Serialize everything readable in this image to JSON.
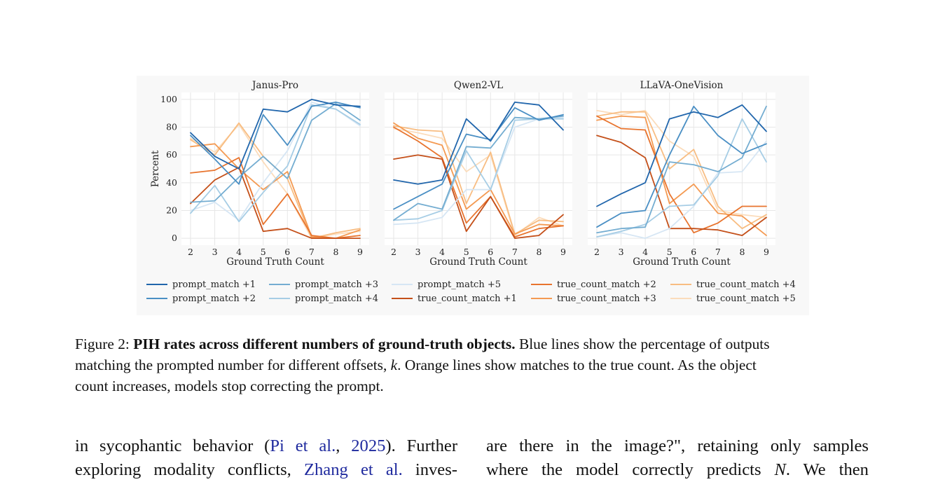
{
  "figure": {
    "ylabel": "Percent",
    "xlabel": "Ground Truth Count",
    "x": [
      2,
      3,
      4,
      5,
      6,
      7,
      8,
      9
    ],
    "yticks": [
      "0",
      "20",
      "40",
      "60",
      "80",
      "100"
    ],
    "legend": [
      {
        "name": "prompt_match +1",
        "color": "#2166ac"
      },
      {
        "name": "prompt_match +2",
        "color": "#4a8fc4"
      },
      {
        "name": "prompt_match +3",
        "color": "#74add1"
      },
      {
        "name": "prompt_match +4",
        "color": "#a6cde5"
      },
      {
        "name": "prompt_match +5",
        "color": "#d6e6f4"
      },
      {
        "name": "true_count_match +1",
        "color": "#c4501a"
      },
      {
        "name": "true_count_match +2",
        "color": "#e8742e"
      },
      {
        "name": "true_count_match +3",
        "color": "#f49a52"
      },
      {
        "name": "true_count_match +4",
        "color": "#f8bd82"
      },
      {
        "name": "true_count_match +5",
        "color": "#fbdcbb"
      }
    ]
  },
  "chart_data": [
    {
      "type": "line",
      "title": "Janus-Pro",
      "xlabel": "Ground Truth Count",
      "ylabel": "Percent",
      "x": [
        2,
        3,
        4,
        5,
        6,
        7,
        8,
        9
      ],
      "ylim": [
        0,
        100
      ],
      "grid": true,
      "series": [
        {
          "name": "prompt_match +1",
          "values": [
            76,
            59,
            50,
            93,
            91,
            100,
            96,
            95
          ]
        },
        {
          "name": "prompt_match +2",
          "values": [
            74,
            57,
            39,
            89,
            67,
            95,
            98,
            94
          ]
        },
        {
          "name": "prompt_match +3",
          "values": [
            26,
            27,
            44,
            59,
            43,
            85,
            97,
            85
          ]
        },
        {
          "name": "prompt_match +4",
          "values": [
            18,
            38,
            12,
            33,
            52,
            96,
            93,
            82
          ]
        },
        {
          "name": "prompt_match +5",
          "values": [
            20,
            26,
            13,
            40,
            63,
            98,
            93,
            81
          ]
        },
        {
          "name": "true_count_match +1",
          "values": [
            25,
            42,
            51,
            5,
            7,
            0,
            0,
            0
          ]
        },
        {
          "name": "true_count_match +2",
          "values": [
            47,
            49,
            58,
            10,
            32,
            2,
            0,
            2
          ]
        },
        {
          "name": "true_count_match +3",
          "values": [
            66,
            68,
            50,
            35,
            48,
            1,
            0,
            6
          ]
        },
        {
          "name": "true_count_match +4",
          "values": [
            71,
            60,
            83,
            59,
            43,
            0,
            4,
            7
          ]
        },
        {
          "name": "true_count_match +5",
          "values": [
            72,
            62,
            82,
            55,
            32,
            0,
            3,
            5
          ]
        }
      ]
    },
    {
      "type": "line",
      "title": "Qwen2-VL",
      "xlabel": "Ground Truth Count",
      "x": [
        2,
        3,
        4,
        5,
        6,
        7,
        8,
        9
      ],
      "ylim": [
        0,
        100
      ],
      "grid": true,
      "series": [
        {
          "name": "prompt_match +1",
          "values": [
            42,
            39,
            42,
            86,
            70,
            98,
            96,
            78
          ]
        },
        {
          "name": "prompt_match +2",
          "values": [
            21,
            30,
            39,
            75,
            71,
            94,
            85,
            89
          ]
        },
        {
          "name": "prompt_match +3",
          "values": [
            13,
            25,
            21,
            66,
            65,
            87,
            86,
            88
          ]
        },
        {
          "name": "prompt_match +4",
          "values": [
            13,
            14,
            20,
            63,
            35,
            85,
            86,
            86
          ]
        },
        {
          "name": "prompt_match +5",
          "values": [
            10,
            11,
            15,
            35,
            35,
            80,
            86,
            87
          ]
        },
        {
          "name": "true_count_match +1",
          "values": [
            57,
            60,
            57,
            5,
            30,
            0,
            2,
            17
          ]
        },
        {
          "name": "true_count_match +2",
          "values": [
            80,
            70,
            58,
            11,
            30,
            1,
            7,
            9
          ]
        },
        {
          "name": "true_count_match +3",
          "values": [
            83,
            72,
            67,
            21,
            35,
            3,
            10,
            9
          ]
        },
        {
          "name": "true_count_match +4",
          "values": [
            81,
            78,
            77,
            25,
            62,
            3,
            13,
            12
          ]
        },
        {
          "name": "true_count_match +5",
          "values": [
            79,
            76,
            72,
            48,
            60,
            2,
            15,
            9
          ]
        }
      ]
    },
    {
      "type": "line",
      "title": "LLaVA-OneVision",
      "xlabel": "Ground Truth Count",
      "x": [
        2,
        3,
        4,
        5,
        6,
        7,
        8,
        9
      ],
      "ylim": [
        0,
        100
      ],
      "grid": true,
      "series": [
        {
          "name": "prompt_match +1",
          "values": [
            23,
            32,
            40,
            86,
            91,
            87,
            96,
            77
          ]
        },
        {
          "name": "prompt_match +2",
          "values": [
            8,
            18,
            20,
            60,
            95,
            74,
            61,
            68
          ]
        },
        {
          "name": "prompt_match +3",
          "values": [
            4,
            7,
            8,
            55,
            53,
            48,
            58,
            95
          ]
        },
        {
          "name": "prompt_match +4",
          "values": [
            1,
            5,
            10,
            23,
            24,
            45,
            86,
            55
          ]
        },
        {
          "name": "prompt_match +5",
          "values": [
            1,
            4,
            0,
            7,
            23,
            47,
            48,
            70
          ]
        },
        {
          "name": "true_count_match +1",
          "values": [
            74,
            69,
            58,
            7,
            7,
            6,
            2,
            15
          ]
        },
        {
          "name": "true_count_match +2",
          "values": [
            88,
            79,
            78,
            32,
            4,
            11,
            23,
            23
          ]
        },
        {
          "name": "true_count_match +3",
          "values": [
            85,
            88,
            87,
            25,
            39,
            18,
            16,
            2
          ]
        },
        {
          "name": "true_count_match +4",
          "values": [
            88,
            91,
            91,
            50,
            64,
            23,
            7,
            17
          ]
        },
        {
          "name": "true_count_match +5",
          "values": [
            92,
            89,
            92,
            70,
            59,
            20,
            17,
            15
          ]
        }
      ]
    }
  ],
  "caption": {
    "prefix": "Figure 2: ",
    "bold": "PIH rates across different numbers of ground-truth objects.",
    "line1_rest": " Blue lines show the percentage of outputs",
    "line2_a": "matching the prompted number for different offsets, ",
    "line2_k": "k",
    "line2_b": ". Orange lines show matches to the true count. As the object",
    "line3": "count increases, models stop correcting the prompt."
  },
  "body": {
    "left_line1_a": "in sycophantic behavior (",
    "left_line1_cite": "Pi et al.",
    "left_line1_sep": ", ",
    "left_line1_year": "2025",
    "left_line1_b": "). Further",
    "left_line2_a": "exploring modality conflicts, ",
    "left_line2_cite": "Zhang et al.",
    "left_line2_b": " inves-",
    "right_line1": "are there in the image?\", retaining only samples",
    "right_line2_a": "where the model correctly predicts ",
    "right_line2_n": "N",
    "right_line2_b": ". We then"
  }
}
